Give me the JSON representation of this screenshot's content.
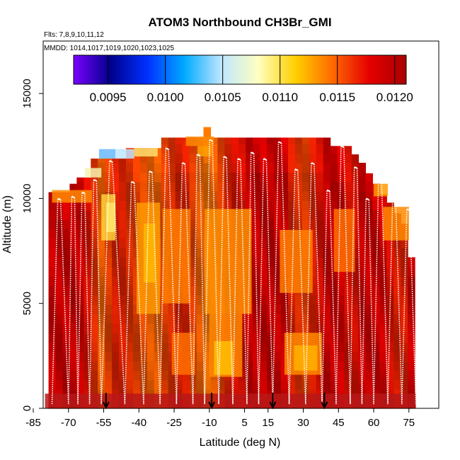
{
  "chart_data": {
    "type": "heatmap",
    "title": "ATOM3 Northbound CH3Br_GMI",
    "subtitle_flights": "Flts: 7,8,9,10,11,12",
    "subtitle_dates": "MMDD: 1014,1017,1019,1020,1023,1025",
    "xlabel": "Latitude (deg N)",
    "ylabel": "Altitude (m)",
    "xlim": [
      -85,
      85
    ],
    "ylim": [
      0,
      17500
    ],
    "x_ticks": [
      -85,
      -70,
      -55,
      -40,
      -25,
      -10,
      5,
      15,
      30,
      45,
      60,
      75
    ],
    "y_ticks": [
      0,
      5000,
      10000,
      15000
    ],
    "colorbar": {
      "range": [
        0.0092,
        0.0121
      ],
      "ticks": [
        0.0095,
        0.01,
        0.0105,
        0.011,
        0.0115,
        0.012
      ],
      "tick_labels": [
        "0.0095",
        "0.0100",
        "0.0105",
        "0.0110",
        "0.0115",
        "0.0120"
      ],
      "colors": [
        "#7a00ff",
        "#00008b",
        "#0030ff",
        "#00aaff",
        "#bfe6ff",
        "#ffffc0",
        "#ffd000",
        "#ff6a00",
        "#e60000",
        "#a80000"
      ]
    },
    "cell_lat_width": 3,
    "cell_alt_height": 450,
    "columns": [
      {
        "lat": -77,
        "top": 10300,
        "base": "#d60000"
      },
      {
        "lat": -74,
        "top": 10300,
        "base": "#d00000"
      },
      {
        "lat": -71,
        "top": 10300,
        "base": "#d00000"
      },
      {
        "lat": -68,
        "top": 10700,
        "base": "#cc0000"
      },
      {
        "lat": -65,
        "top": 11000,
        "base": "#d40000"
      },
      {
        "lat": -62,
        "top": 11000,
        "base": "#dc1000"
      },
      {
        "lat": -59,
        "top": 11900,
        "base": "#e83000"
      },
      {
        "lat": -56,
        "top": 11900,
        "base": "#f06000"
      },
      {
        "lat": -53,
        "top": 11900,
        "base": "#e84000"
      },
      {
        "lat": -50,
        "top": 11900,
        "base": "#e02000"
      },
      {
        "lat": -47,
        "top": 11900,
        "base": "#e02000"
      },
      {
        "lat": -44,
        "top": 12400,
        "base": "#e03000"
      },
      {
        "lat": -41,
        "top": 12400,
        "base": "#e84000"
      },
      {
        "lat": -38,
        "top": 12400,
        "base": "#f05000"
      },
      {
        "lat": -35,
        "top": 12400,
        "base": "#f06000"
      },
      {
        "lat": -32,
        "top": 12400,
        "base": "#f06000"
      },
      {
        "lat": -29,
        "top": 12900,
        "base": "#e84000"
      },
      {
        "lat": -26,
        "top": 12900,
        "base": "#e03000"
      },
      {
        "lat": -23,
        "top": 12900,
        "base": "#d82000"
      },
      {
        "lat": -20,
        "top": 12900,
        "base": "#e02000"
      },
      {
        "lat": -17,
        "top": 12900,
        "base": "#e84000"
      },
      {
        "lat": -14,
        "top": 12900,
        "base": "#f06000"
      },
      {
        "lat": -11,
        "top": 13400,
        "base": "#f07000"
      },
      {
        "lat": -8,
        "top": 12900,
        "base": "#f06000"
      },
      {
        "lat": -5,
        "top": 12900,
        "base": "#e84000"
      },
      {
        "lat": -2,
        "top": 12900,
        "base": "#e02000"
      },
      {
        "lat": 1,
        "top": 12900,
        "base": "#d81000"
      },
      {
        "lat": 4,
        "top": 12900,
        "base": "#d81000"
      },
      {
        "lat": 7,
        "top": 12900,
        "base": "#d00000"
      },
      {
        "lat": 10,
        "top": 12900,
        "base": "#d00000"
      },
      {
        "lat": 13,
        "top": 12900,
        "base": "#d00000"
      },
      {
        "lat": 16,
        "top": 12900,
        "base": "#c80000"
      },
      {
        "lat": 19,
        "top": 12900,
        "base": "#d00000"
      },
      {
        "lat": 22,
        "top": 12900,
        "base": "#d80000"
      },
      {
        "lat": 25,
        "top": 12900,
        "base": "#e02000"
      },
      {
        "lat": 28,
        "top": 12900,
        "base": "#e03000"
      },
      {
        "lat": 31,
        "top": 12900,
        "base": "#e84000"
      },
      {
        "lat": 34,
        "top": 12900,
        "base": "#e02000"
      },
      {
        "lat": 37,
        "top": 12900,
        "base": "#d81000"
      },
      {
        "lat": 40,
        "top": 12900,
        "base": "#d00000"
      },
      {
        "lat": 43,
        "top": 12500,
        "base": "#d00000"
      },
      {
        "lat": 46,
        "top": 12500,
        "base": "#d80000"
      },
      {
        "lat": 49,
        "top": 12500,
        "base": "#d81000"
      },
      {
        "lat": 52,
        "top": 12100,
        "base": "#d81000"
      },
      {
        "lat": 55,
        "top": 11700,
        "base": "#d00000"
      },
      {
        "lat": 58,
        "top": 11200,
        "base": "#d00000"
      },
      {
        "lat": 61,
        "top": 10700,
        "base": "#d00000"
      },
      {
        "lat": 64,
        "top": 10200,
        "base": "#d80000"
      },
      {
        "lat": 67,
        "top": 9800,
        "base": "#e01000"
      },
      {
        "lat": 70,
        "top": 9300,
        "base": "#e02000"
      },
      {
        "lat": 73,
        "top": 8800,
        "base": "#e02000"
      },
      {
        "lat": 76,
        "top": 7200,
        "base": "#d80000"
      }
    ],
    "light_patches": [
      {
        "lat_min": -57,
        "lat_max": -50,
        "alt_min": 11900,
        "alt_max": 12350,
        "color": "#6ab8ff"
      },
      {
        "lat_min": -50,
        "lat_max": -42,
        "alt_min": 11900,
        "alt_max": 12350,
        "color": "#bfe6ff"
      },
      {
        "lat_min": -63,
        "lat_max": -56,
        "alt_min": 11000,
        "alt_max": 11450,
        "color": "#f6f2b0"
      },
      {
        "lat_min": -42,
        "lat_max": -32,
        "alt_min": 12000,
        "alt_max": 12400,
        "color": "#ffe070"
      },
      {
        "lat_min": -56,
        "lat_max": -50,
        "alt_min": 8000,
        "alt_max": 10200,
        "color": "#ffd23a"
      },
      {
        "lat_min": -54,
        "lat_max": -50,
        "alt_min": 8400,
        "alt_max": 9800,
        "color": "#ffe66a"
      },
      {
        "lat_min": -41,
        "lat_max": -31,
        "alt_min": 4500,
        "alt_max": 9800,
        "color": "#ff9a00"
      },
      {
        "lat_min": -38,
        "lat_max": -33,
        "alt_min": 6000,
        "alt_max": 8800,
        "color": "#ffb800"
      },
      {
        "lat_min": -30,
        "lat_max": -18,
        "alt_min": 5000,
        "alt_max": 9500,
        "color": "#ff8000"
      },
      {
        "lat_min": -12,
        "lat_max": 8,
        "alt_min": 4500,
        "alt_max": 9500,
        "color": "#ff9000"
      },
      {
        "lat_min": -10,
        "lat_max": 4,
        "alt_min": 1500,
        "alt_max": 4500,
        "color": "#ff8a00"
      },
      {
        "lat_min": -8,
        "lat_max": 0,
        "alt_min": 1600,
        "alt_max": 3200,
        "color": "#ffc000"
      },
      {
        "lat_min": -26,
        "lat_max": -16,
        "alt_min": 1600,
        "alt_max": 3600,
        "color": "#ff7000"
      },
      {
        "lat_min": 22,
        "lat_max": 38,
        "alt_min": 1600,
        "alt_max": 3600,
        "color": "#ff8a00"
      },
      {
        "lat_min": 26,
        "lat_max": 36,
        "alt_min": 1800,
        "alt_max": 3000,
        "color": "#ffb000"
      },
      {
        "lat_min": 20,
        "lat_max": 34,
        "alt_min": 5500,
        "alt_max": 8500,
        "color": "#ff8000"
      },
      {
        "lat_min": 43,
        "lat_max": 52,
        "alt_min": 6500,
        "alt_max": 9500,
        "color": "#ff7000"
      },
      {
        "lat_min": 64,
        "lat_max": 75,
        "alt_min": 8000,
        "alt_max": 9600,
        "color": "#ff8a00"
      },
      {
        "lat_min": 60,
        "lat_max": 66,
        "alt_min": 10100,
        "alt_max": 10700,
        "color": "#ff9a00"
      },
      {
        "lat_min": -77,
        "lat_max": -60,
        "alt_min": 9800,
        "alt_max": 10400,
        "color": "#ff8a00"
      },
      {
        "lat_min": -20,
        "lat_max": -8,
        "alt_min": 12500,
        "alt_max": 12950,
        "color": "#ff8a00"
      },
      {
        "lat_min": -15,
        "lat_max": -9,
        "alt_min": 12000,
        "alt_max": 12500,
        "color": "#ffa000"
      },
      {
        "lat_min": -80,
        "lat_max": 78,
        "alt_min": 0,
        "alt_max": 700,
        "color": "#b81818"
      }
    ],
    "flight_track_lats": [
      -77,
      -70,
      -66,
      -61,
      -56,
      -46,
      -38,
      -31,
      -24,
      -17,
      -12,
      -6,
      0,
      6,
      11,
      17,
      24,
      31,
      38,
      44,
      50,
      55,
      60,
      66,
      72,
      78
    ],
    "flight_peaks": [
      10000,
      10100,
      10300,
      10900,
      11800,
      10800,
      11300,
      12400,
      11700,
      12100,
      12800,
      12000,
      11900,
      12200,
      11900,
      12700,
      11400,
      11700,
      10400,
      12500,
      11500,
      10000,
      11200,
      10200,
      9500,
      8500
    ],
    "arrow_lats": [
      -54,
      -9,
      17,
      39
    ]
  }
}
